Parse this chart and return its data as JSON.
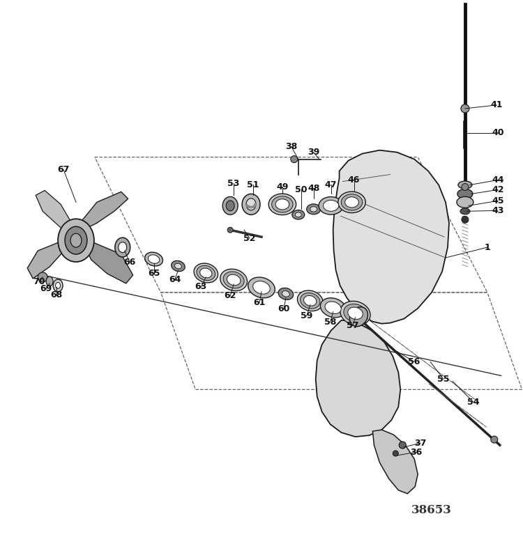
{
  "bg_color": "#ffffff",
  "line_color": "#1a1a1a",
  "fig_width": 7.5,
  "fig_height": 7.84,
  "dpi": 100,
  "watermark": "38653"
}
